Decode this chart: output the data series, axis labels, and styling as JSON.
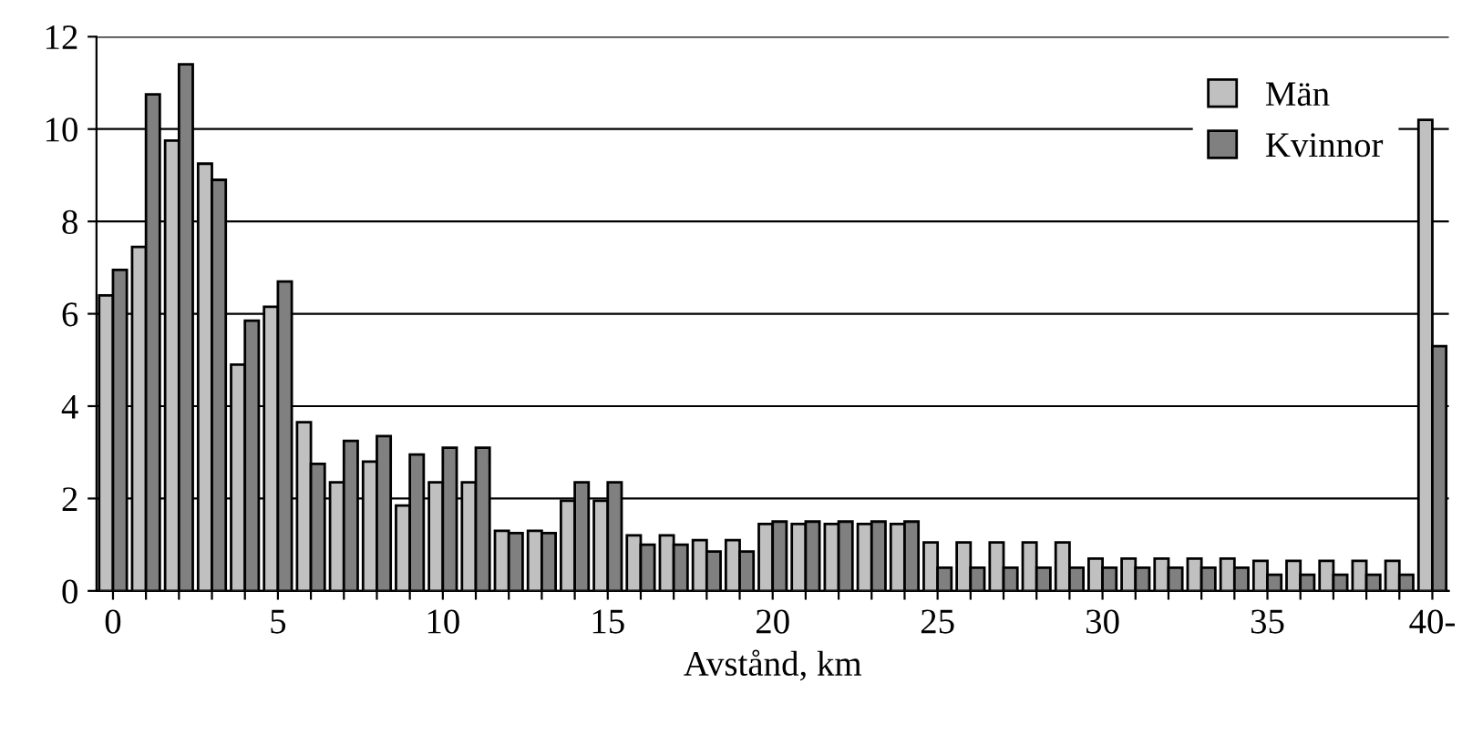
{
  "chart_data": {
    "type": "bar",
    "xlabel": "Avstånd, km",
    "categories": [
      "0",
      null,
      null,
      null,
      null,
      "5",
      null,
      null,
      null,
      null,
      "10",
      null,
      null,
      null,
      null,
      "15",
      null,
      null,
      null,
      null,
      "20",
      null,
      null,
      null,
      null,
      "25",
      null,
      null,
      null,
      null,
      "30",
      null,
      null,
      null,
      null,
      "35",
      null,
      null,
      null,
      null,
      "40-"
    ],
    "series": [
      {
        "name": "Män",
        "color": "#c0c0c0",
        "values": [
          6.4,
          7.45,
          9.75,
          9.25,
          4.9,
          6.15,
          3.65,
          2.35,
          2.8,
          1.85,
          2.35,
          2.35,
          1.3,
          1.3,
          1.95,
          1.95,
          1.2,
          1.2,
          1.1,
          1.1,
          1.45,
          1.45,
          1.45,
          1.45,
          1.45,
          1.05,
          1.05,
          1.05,
          1.05,
          1.05,
          0.7,
          0.7,
          0.7,
          0.7,
          0.7,
          0.65,
          0.65,
          0.65,
          0.65,
          0.65,
          10.2
        ]
      },
      {
        "name": "Kvinnor",
        "color": "#808080",
        "values": [
          6.95,
          10.75,
          11.4,
          8.9,
          5.85,
          6.7,
          2.75,
          3.25,
          3.35,
          2.95,
          3.1,
          3.1,
          1.25,
          1.25,
          2.35,
          2.35,
          1.0,
          1.0,
          0.85,
          0.85,
          1.5,
          1.5,
          1.5,
          1.5,
          1.5,
          0.5,
          0.5,
          0.5,
          0.5,
          0.5,
          0.5,
          0.5,
          0.5,
          0.5,
          0.5,
          0.35,
          0.35,
          0.35,
          0.35,
          0.35,
          5.3
        ]
      }
    ],
    "ylim": [
      0,
      12
    ],
    "yticks": [
      0,
      2,
      4,
      6,
      8,
      10,
      12
    ],
    "grid": "y",
    "legend": "top right"
  }
}
